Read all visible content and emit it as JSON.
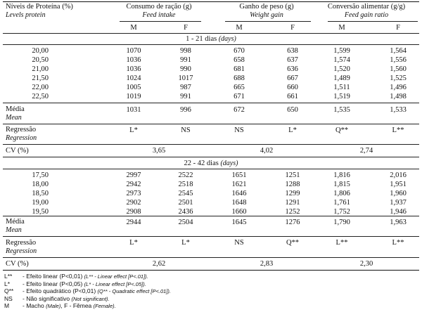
{
  "header": {
    "col0": "Níveis de Proteína (%)",
    "col0_en": "Levels protein",
    "groups": [
      {
        "title": "Consumo de ração (g)",
        "en": "Feed intake"
      },
      {
        "title": "Ganho de peso (g)",
        "en": "Weight gain"
      },
      {
        "title": "Conversão alimentar (g/g)",
        "en": "Feed gain ratio"
      }
    ],
    "sex": [
      "M",
      "F",
      "M",
      "F",
      "M",
      "F"
    ]
  },
  "period1": {
    "title": "1 - 21 dias",
    "title_en": "(days)",
    "rows": [
      [
        "20,00",
        "1070",
        "998",
        "670",
        "638",
        "1,599",
        "1,564"
      ],
      [
        "20,50",
        "1036",
        "991",
        "658",
        "637",
        "1,574",
        "1,556"
      ],
      [
        "21,00",
        "1036",
        "990",
        "681",
        "636",
        "1,520",
        "1,560"
      ],
      [
        "21,50",
        "1024",
        "1017",
        "688",
        "667",
        "1,489",
        "1,525"
      ],
      [
        "22,00",
        "1005",
        "987",
        "665",
        "660",
        "1,511",
        "1,496"
      ],
      [
        "22,50",
        "1019",
        "991",
        "671",
        "661",
        "1,519",
        "1,498"
      ]
    ],
    "mean": [
      "1031",
      "996",
      "672",
      "650",
      "1,535",
      "1,533"
    ],
    "regression": [
      "L*",
      "NS",
      "NS",
      "L*",
      "Q**",
      "L**"
    ],
    "cv": [
      "3,65",
      "4,02",
      "2,74"
    ]
  },
  "period2": {
    "title": "22 - 42 dias",
    "title_en": "(days)",
    "rows": [
      [
        "17,50",
        "2997",
        "2522",
        "1651",
        "1251",
        "1,816",
        "2,016"
      ],
      [
        "18,00",
        "2942",
        "2518",
        "1621",
        "1288",
        "1,815",
        "1,951"
      ],
      [
        "18,50",
        "2973",
        "2545",
        "1646",
        "1299",
        "1,806",
        "1,960"
      ],
      [
        "19,00",
        "2902",
        "2501",
        "1648",
        "1291",
        "1,761",
        "1,937"
      ],
      [
        "19,50",
        "2908",
        "2436",
        "1660",
        "1252",
        "1,752",
        "1,946"
      ]
    ],
    "mean": [
      "2944",
      "2504",
      "1645",
      "1276",
      "1,790",
      "1,963"
    ],
    "regression": [
      "L*",
      "L*",
      "NS",
      "Q**",
      "L**",
      "L**"
    ],
    "cv": [
      "2,62",
      "2,83",
      "2,30"
    ]
  },
  "labels": {
    "mean": "Média",
    "mean_en": "Mean",
    "regression": "Regressão",
    "regression_en": "Regression",
    "cv": "CV (%)"
  },
  "footnotes": [
    {
      "sym": "L**",
      "text": "- Efeito linear (P<0,01)",
      "en": "(L** - Linear effect [P<.01])."
    },
    {
      "sym": "L*",
      "text": "- Efeito linear (P<0,05)",
      "en": "(L* - Linear effect [P<.05])."
    },
    {
      "sym": "Q**",
      "text": "- Efeito quadrático (P<0,01)",
      "en": "(Q** - Quadratic effect [P<.01])."
    },
    {
      "sym": "NS",
      "text": "- Não significativo",
      "en": "(Not significant)."
    },
    {
      "sym": "M",
      "text": "- Macho",
      "en": "(Male)",
      "text2": ", F - Fêmea",
      "en2": "(Female)."
    }
  ]
}
